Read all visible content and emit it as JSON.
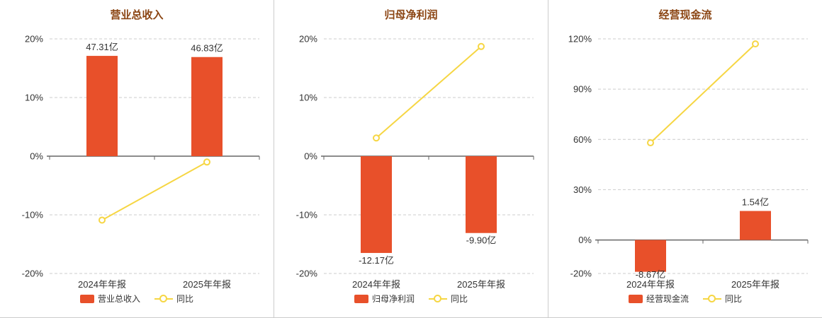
{
  "colors": {
    "bar": "#e8502a",
    "line": "#f6d643",
    "title": "#8b4513",
    "axis": "#666666",
    "grid": "#cccccc",
    "text": "#333333",
    "panel_border": "#cccccc"
  },
  "chart_data": [
    {
      "type": "bar+line",
      "title": "营业总收入",
      "categories": [
        "2024年年报",
        "2025年年报"
      ],
      "ylim": [
        -20,
        20
      ],
      "y_ticks": [
        -20,
        -10,
        0,
        10,
        20
      ],
      "y_tick_suffix": "%",
      "grid": "dashed horizontal",
      "legend_position": "bottom",
      "bar_series": {
        "name": "营业总收入",
        "labels": [
          "47.31亿",
          "46.83亿"
        ],
        "display_values": [
          17.1,
          16.9
        ],
        "unit": "亿"
      },
      "line_series": {
        "name": "同比",
        "values": [
          -10.9,
          -1.0
        ],
        "unit": "%"
      }
    },
    {
      "type": "bar+line",
      "title": "归母净利润",
      "categories": [
        "2024年年报",
        "2025年年报"
      ],
      "ylim": [
        -20,
        20
      ],
      "y_ticks": [
        -20,
        -10,
        0,
        10,
        20
      ],
      "y_tick_suffix": "%",
      "grid": "dashed horizontal",
      "legend_position": "bottom",
      "bar_series": {
        "name": "归母净利润",
        "labels": [
          "-12.17亿",
          "-9.90亿"
        ],
        "display_values": [
          -16.5,
          -13.1
        ],
        "unit": "亿"
      },
      "line_series": {
        "name": "同比",
        "values": [
          3.1,
          18.7
        ],
        "unit": "%"
      }
    },
    {
      "type": "bar+line",
      "title": "经营现金流",
      "categories": [
        "2024年年报",
        "2025年年报"
      ],
      "ylim": [
        -20,
        120
      ],
      "y_ticks": [
        -20,
        0,
        30,
        60,
        90,
        120
      ],
      "y_tick_suffix": "%",
      "grid": "dashed horizontal",
      "legend_position": "bottom",
      "bar_series": {
        "name": "经营现金流",
        "labels": [
          "-8.67亿",
          "1.54亿"
        ],
        "display_values": [
          -19.0,
          17.3
        ],
        "unit": "亿"
      },
      "line_series": {
        "name": "同比",
        "values": [
          58,
          117
        ],
        "unit": "%"
      }
    }
  ]
}
